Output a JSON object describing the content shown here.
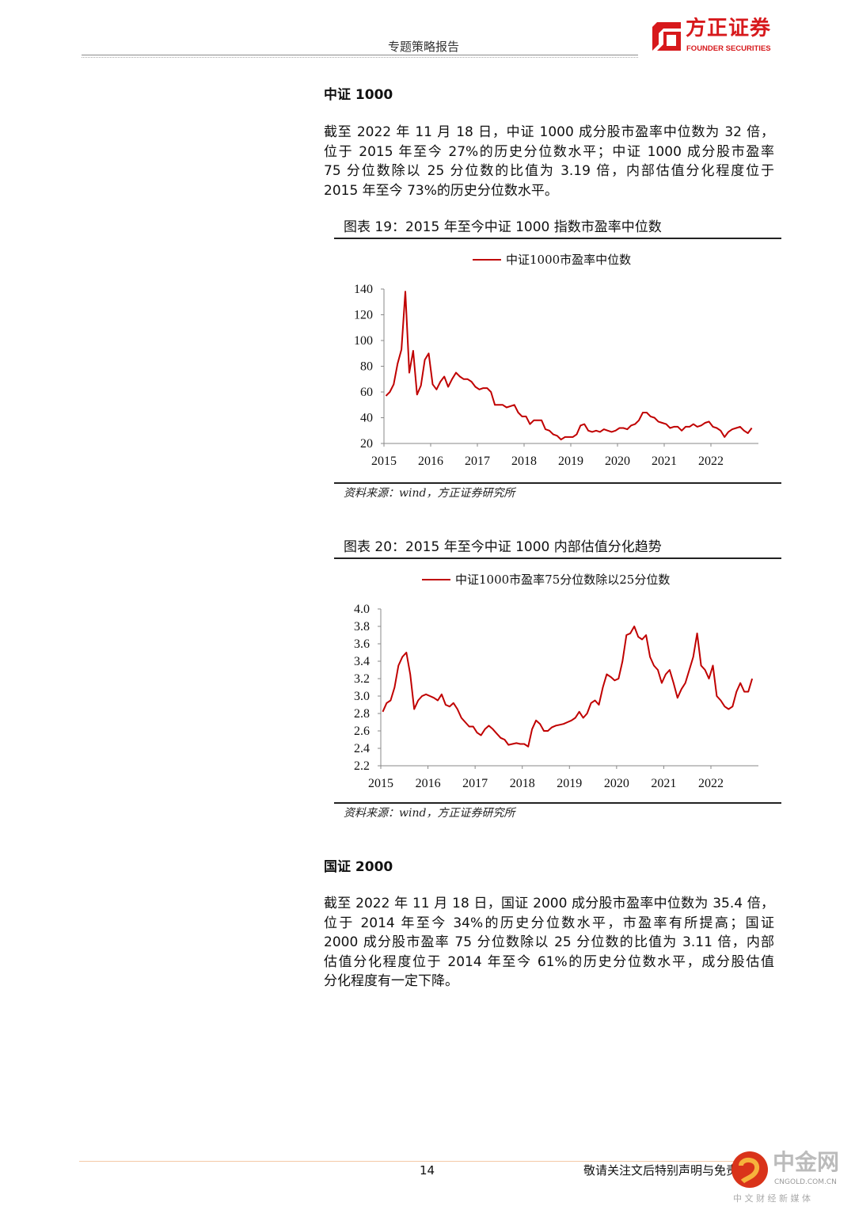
{
  "header": {
    "report_type": "专题策略报告",
    "logo_cn": "方正证券",
    "logo_en": "FOUNDER SECURITIES",
    "brand_color": "#d7191c"
  },
  "section1": {
    "heading": "中证 1000",
    "paragraph_lines": [
      "截至 2022 年 11 月 18 日，中证 1000 成分股市盈率中位数为 32 倍，",
      "位于 2015 年至今 27%的历史分位数水平；中证 1000 成分股市盈率",
      "75 分位数除以 25 分位数的比值为 3.19 倍，内部估值分化程度位于",
      "2015 年至今 73%的历史分位数水平。"
    ]
  },
  "figure19": {
    "title": "图表 19：2015 年至今中证 1000 指数市盈率中位数",
    "source": "资料来源：wind，方正证券研究所"
  },
  "figure20": {
    "title": "图表 20：2015 年至今中证 1000 内部估值分化趋势",
    "source": "资料来源：wind，方正证券研究所"
  },
  "section2": {
    "heading": "国证 2000",
    "paragraph_lines": [
      "截至 2022 年 11 月 18 日，国证 2000 成分股市盈率中位数为 35.4 倍，",
      "位于 2014 年至今 34%的历史分位数水平，市盈率有所提高；国证",
      "2000 成分股市盈率 75 分位数除以 25 分位数的比值为 3.11 倍，内部",
      "估值分化程度位于 2014 年至今 61%的历史分位数水平，成分股估值",
      "分化程度有一定下降。"
    ]
  },
  "footer": {
    "page_number": "14",
    "disclaimer": "敬请关注文后特别声明与免责条款",
    "watermark_cn": "中金网",
    "watermark_url": "CNGOLD.COM.CN",
    "watermark_tagline": "中 文 财 经 新 媒 体"
  },
  "chart_data": [
    {
      "type": "line",
      "title": "",
      "legend_position": "top",
      "grid": false,
      "xlabel": "",
      "ylabel": "",
      "ylim": [
        20,
        140
      ],
      "yticks": [
        "20",
        "40",
        "60",
        "80",
        "100",
        "120",
        "140"
      ],
      "xticks": [
        "2015",
        "2016",
        "2017",
        "2018",
        "2019",
        "2020",
        "2021",
        "2022"
      ],
      "series": [
        {
          "name": "中证1000市盈率中位数",
          "color": "#c00000",
          "x": [
            "2015-01",
            "2015-02",
            "2015-03",
            "2015-04",
            "2015-05",
            "2015-06",
            "2015-07",
            "2015-08",
            "2015-09",
            "2015-10",
            "2015-11",
            "2015-12",
            "2016-01",
            "2016-02",
            "2016-03",
            "2016-04",
            "2016-05",
            "2016-06",
            "2016-07",
            "2016-08",
            "2016-09",
            "2016-10",
            "2016-11",
            "2016-12",
            "2017-01",
            "2017-02",
            "2017-03",
            "2017-04",
            "2017-05",
            "2017-06",
            "2017-07",
            "2017-08",
            "2017-09",
            "2017-10",
            "2017-11",
            "2017-12",
            "2018-01",
            "2018-02",
            "2018-03",
            "2018-04",
            "2018-05",
            "2018-06",
            "2018-07",
            "2018-08",
            "2018-09",
            "2018-10",
            "2018-11",
            "2018-12",
            "2019-01",
            "2019-02",
            "2019-03",
            "2019-04",
            "2019-05",
            "2019-06",
            "2019-07",
            "2019-08",
            "2019-09",
            "2019-10",
            "2019-11",
            "2019-12",
            "2020-01",
            "2020-02",
            "2020-03",
            "2020-04",
            "2020-05",
            "2020-06",
            "2020-07",
            "2020-08",
            "2020-09",
            "2020-10",
            "2020-11",
            "2020-12",
            "2021-01",
            "2021-02",
            "2021-03",
            "2021-04",
            "2021-05",
            "2021-06",
            "2021-07",
            "2021-08",
            "2021-09",
            "2021-10",
            "2021-11",
            "2021-12",
            "2022-01",
            "2022-02",
            "2022-03",
            "2022-04",
            "2022-05",
            "2022-06",
            "2022-07",
            "2022-08",
            "2022-09",
            "2022-10",
            "2022-11"
          ],
          "values": [
            57,
            60,
            66,
            82,
            93,
            138,
            75,
            92,
            58,
            65,
            85,
            90,
            66,
            62,
            68,
            72,
            64,
            70,
            75,
            72,
            70,
            70,
            68,
            64,
            62,
            63,
            63,
            60,
            50,
            50,
            50,
            48,
            49,
            50,
            44,
            41,
            41,
            35,
            38,
            38,
            38,
            31,
            30,
            27,
            26,
            23,
            25,
            25,
            25,
            27,
            34,
            35,
            30,
            29,
            30,
            29,
            31,
            30,
            29,
            30,
            32,
            32,
            31,
            34,
            35,
            38,
            44,
            44,
            41,
            40,
            37,
            36,
            35,
            32,
            33,
            33,
            30,
            33,
            33,
            35,
            33,
            34,
            36,
            37,
            33,
            32,
            30,
            25,
            29,
            31,
            32,
            33,
            30,
            28,
            32
          ]
        }
      ]
    },
    {
      "type": "line",
      "title": "",
      "legend_position": "top",
      "grid": false,
      "xlabel": "",
      "ylabel": "",
      "ylim": [
        2.2,
        4.0
      ],
      "yticks": [
        "2.2",
        "2.4",
        "2.6",
        "2.8",
        "3.0",
        "3.2",
        "3.4",
        "3.6",
        "3.8",
        "4.0"
      ],
      "xticks": [
        "2015",
        "2016",
        "2017",
        "2018",
        "2019",
        "2020",
        "2021",
        "2022"
      ],
      "series": [
        {
          "name": "中证1000市盈率75分位数除以25分位数",
          "color": "#c00000",
          "x": [
            "2015-01",
            "2015-02",
            "2015-03",
            "2015-04",
            "2015-05",
            "2015-06",
            "2015-07",
            "2015-08",
            "2015-09",
            "2015-10",
            "2015-11",
            "2015-12",
            "2016-01",
            "2016-02",
            "2016-03",
            "2016-04",
            "2016-05",
            "2016-06",
            "2016-07",
            "2016-08",
            "2016-09",
            "2016-10",
            "2016-11",
            "2016-12",
            "2017-01",
            "2017-02",
            "2017-03",
            "2017-04",
            "2017-05",
            "2017-06",
            "2017-07",
            "2017-08",
            "2017-09",
            "2017-10",
            "2017-11",
            "2017-12",
            "2018-01",
            "2018-02",
            "2018-03",
            "2018-04",
            "2018-05",
            "2018-06",
            "2018-07",
            "2018-08",
            "2018-09",
            "2018-10",
            "2018-11",
            "2018-12",
            "2019-01",
            "2019-02",
            "2019-03",
            "2019-04",
            "2019-05",
            "2019-06",
            "2019-07",
            "2019-08",
            "2019-09",
            "2019-10",
            "2019-11",
            "2019-12",
            "2020-01",
            "2020-02",
            "2020-03",
            "2020-04",
            "2020-05",
            "2020-06",
            "2020-07",
            "2020-08",
            "2020-09",
            "2020-10",
            "2020-11",
            "2020-12",
            "2021-01",
            "2021-02",
            "2021-03",
            "2021-04",
            "2021-05",
            "2021-06",
            "2021-07",
            "2021-08",
            "2021-09",
            "2021-10",
            "2021-11",
            "2021-12",
            "2022-01",
            "2022-02",
            "2022-03",
            "2022-04",
            "2022-05",
            "2022-06",
            "2022-07",
            "2022-08",
            "2022-09",
            "2022-10",
            "2022-11"
          ],
          "values": [
            2.82,
            2.92,
            2.95,
            3.1,
            3.35,
            3.45,
            3.5,
            3.25,
            2.85,
            2.95,
            3.0,
            3.02,
            3.0,
            2.98,
            2.95,
            3.02,
            2.9,
            2.88,
            2.92,
            2.85,
            2.75,
            2.7,
            2.65,
            2.65,
            2.58,
            2.55,
            2.62,
            2.66,
            2.62,
            2.57,
            2.52,
            2.5,
            2.44,
            2.45,
            2.46,
            2.45,
            2.45,
            2.42,
            2.62,
            2.72,
            2.68,
            2.6,
            2.6,
            2.64,
            2.66,
            2.67,
            2.68,
            2.7,
            2.72,
            2.75,
            2.82,
            2.75,
            2.8,
            2.92,
            2.95,
            2.9,
            3.1,
            3.25,
            3.22,
            3.18,
            3.2,
            3.4,
            3.7,
            3.72,
            3.8,
            3.68,
            3.65,
            3.7,
            3.45,
            3.35,
            3.3,
            3.15,
            3.25,
            3.3,
            3.15,
            2.98,
            3.08,
            3.15,
            3.3,
            3.45,
            3.72,
            3.35,
            3.3,
            3.2,
            3.35,
            3.0,
            2.95,
            2.88,
            2.85,
            2.88,
            3.05,
            3.15,
            3.05,
            3.05,
            3.2
          ]
        }
      ]
    }
  ]
}
